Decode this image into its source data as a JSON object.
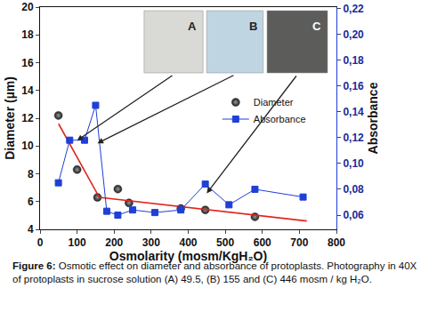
{
  "chart_data": {
    "type": "scatter",
    "x_label": "Osmolarity (mosm/KgH₂O)",
    "y_label": "Diameter (µm)",
    "y2_label": "Absorbance",
    "caption": "Figure 6: Osmotic effect on diameter and absorbance of protoplasts. Photography in 40X of protoplasts in sucrose solution (A) 49.5, (B) 155 and (C) 446 mosm / kg H₂O.",
    "xlim": [
      0,
      800
    ],
    "xticks": [
      0,
      100,
      200,
      300,
      400,
      500,
      600,
      700,
      800
    ],
    "ylim": [
      4,
      20
    ],
    "yticks": [
      4,
      6,
      8,
      10,
      12,
      14,
      16,
      18,
      20
    ],
    "y2lim": [
      0.049,
      0.221
    ],
    "y2ticks": [
      {
        "value": 0.06,
        "label": "0,06"
      },
      {
        "value": 0.08,
        "label": "0,08"
      },
      {
        "value": 0.1,
        "label": "0,10"
      },
      {
        "value": 0.12,
        "label": "0,12"
      },
      {
        "value": 0.14,
        "label": "0,14"
      },
      {
        "value": 0.16,
        "label": "0,16"
      },
      {
        "value": 0.18,
        "label": "0,18"
      },
      {
        "value": 0.2,
        "label": "0,20"
      },
      {
        "value": 0.22,
        "label": "0,22"
      }
    ],
    "legend": "right",
    "grid": false,
    "series": [
      {
        "name": "Diameter",
        "type": "scatter",
        "marker": "circle",
        "color": "#1a1a1a",
        "x": [
          49.5,
          100,
          155,
          210,
          240,
          380,
          446,
          580
        ],
        "values": [
          12.2,
          8.3,
          6.3,
          6.9,
          5.9,
          5.5,
          5.4,
          4.9
        ]
      },
      {
        "name": "Absorbance",
        "type": "line",
        "marker": "square",
        "color": "#1f3fd6",
        "axis": "y2",
        "x": [
          49.5,
          80,
          120,
          150,
          180,
          210,
          250,
          310,
          380,
          446,
          510,
          580,
          710
        ],
        "values": [
          0.085,
          0.118,
          0.118,
          0.145,
          0.063,
          0.06,
          0.064,
          0.062,
          0.064,
          0.084,
          0.068,
          0.08,
          0.074
        ]
      },
      {
        "type": "line",
        "color": "#e0261c",
        "line_style": "solid",
        "x": [
          50,
          160,
          720
        ],
        "values": [
          11.6,
          6.3,
          4.6
        ]
      }
    ],
    "annotations": [
      {
        "text": "A",
        "x": 100,
        "y": 10.4
      },
      {
        "text": "B",
        "x": 155,
        "y": 10.2
      },
      {
        "text": "C",
        "x": 450,
        "y": 6.6
      }
    ]
  }
}
